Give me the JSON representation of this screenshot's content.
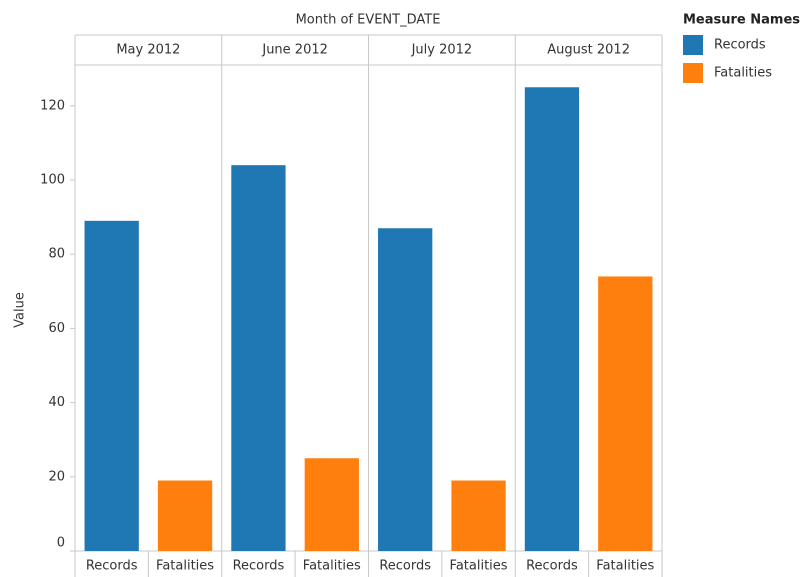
{
  "chart_data": {
    "type": "bar",
    "title": "Month of EVENT_DATE",
    "y_label": "Value",
    "legend_title": "Measure Names",
    "categories": [
      "May 2012",
      "June 2012",
      "July 2012",
      "August 2012"
    ],
    "series": [
      {
        "name": "Records",
        "color": "#1f77b4",
        "values": [
          89,
          104,
          87,
          125
        ]
      },
      {
        "name": "Fatalities",
        "color": "#ff7f0e",
        "values": [
          19,
          25,
          19,
          74
        ]
      }
    ],
    "ylim": [
      0,
      131
    ],
    "yticks": [
      0,
      20,
      40,
      60,
      80,
      100,
      120
    ],
    "grid": false,
    "legend": "right"
  }
}
